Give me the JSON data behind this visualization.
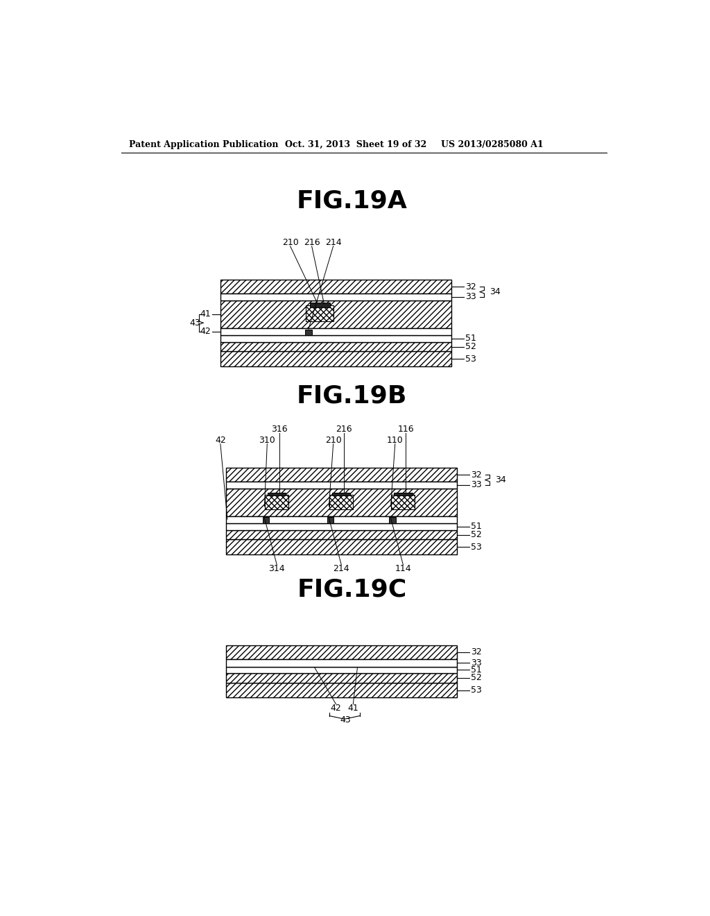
{
  "header_left": "Patent Application Publication",
  "header_mid": "Oct. 31, 2013  Sheet 19 of 32",
  "header_right": "US 2013/0285080 A1",
  "fig_titles": [
    "FIG.19A",
    "FIG.19B",
    "FIG.19C"
  ],
  "background": "#ffffff",
  "line_color": "#000000"
}
